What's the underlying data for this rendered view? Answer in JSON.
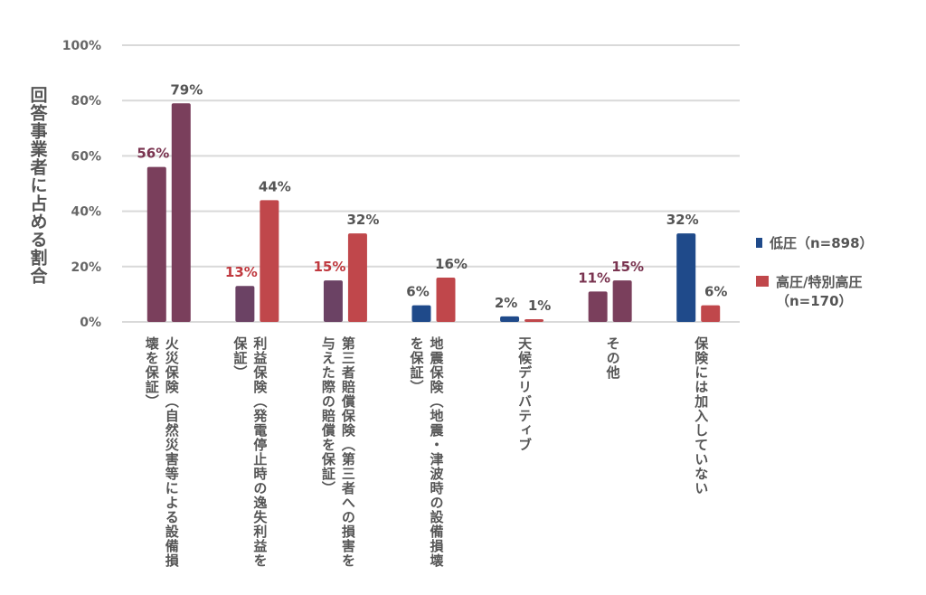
{
  "chart_data": {
    "type": "bar",
    "title": "",
    "xlabel": "",
    "ylabel": "回答事業者に占める割合",
    "ylim": [
      0,
      100
    ],
    "yticks": [
      "0%",
      "20%",
      "40%",
      "60%",
      "80%",
      "100%"
    ],
    "ytick_values": [
      0,
      20,
      40,
      60,
      80,
      100
    ],
    "grid": true,
    "legend_position": "right",
    "categories": [
      "火災保険（自然災害等による設備損壊を保証）",
      "利益保険（発電停止時の逸失利益を保証）",
      "第三者賠償保険（第三者への損害を与えた際の賠償を保証）",
      "地震保険（地震・津波時の設備損壊を保証）",
      "天候デリバティブ",
      "その他",
      "保険には加入していない"
    ],
    "series": [
      {
        "name": "低圧（n=898）",
        "legend_line1": "低圧（n=898）",
        "color": "#1f4a8a",
        "values": [
          56,
          13,
          15,
          6,
          2,
          11,
          32
        ],
        "labels": [
          "56%",
          "13%",
          "15%",
          "6%",
          "2%",
          "11%",
          "32%"
        ],
        "bar_colors": [
          "#7a3f5c",
          "#6b4264",
          "#6b4264",
          "#1f4a8a",
          "#1f4a8a",
          "#7a3f5c",
          "#1f4a8a"
        ],
        "label_colors": [
          "#7a3450",
          "#c0393f",
          "#c0393f",
          "#555555",
          "#555555",
          "#7a3450",
          "#555555"
        ]
      },
      {
        "name": "高圧/特別高圧（n=170）",
        "legend_line1": "高圧/特別高圧",
        "legend_line2": "（n=170）",
        "color": "#c0474b",
        "values": [
          79,
          44,
          32,
          16,
          1,
          15,
          6
        ],
        "labels": [
          "79%",
          "44%",
          "32%",
          "16%",
          "1%",
          "15%",
          "6%"
        ],
        "bar_colors": [
          "#7a3f5c",
          "#c0474b",
          "#c0474b",
          "#c0474b",
          "#c0474b",
          "#7a3f5c",
          "#c0474b"
        ],
        "label_colors": [
          "#555555",
          "#555555",
          "#555555",
          "#555555",
          "#555555",
          "#7a3450",
          "#555555"
        ]
      }
    ]
  }
}
